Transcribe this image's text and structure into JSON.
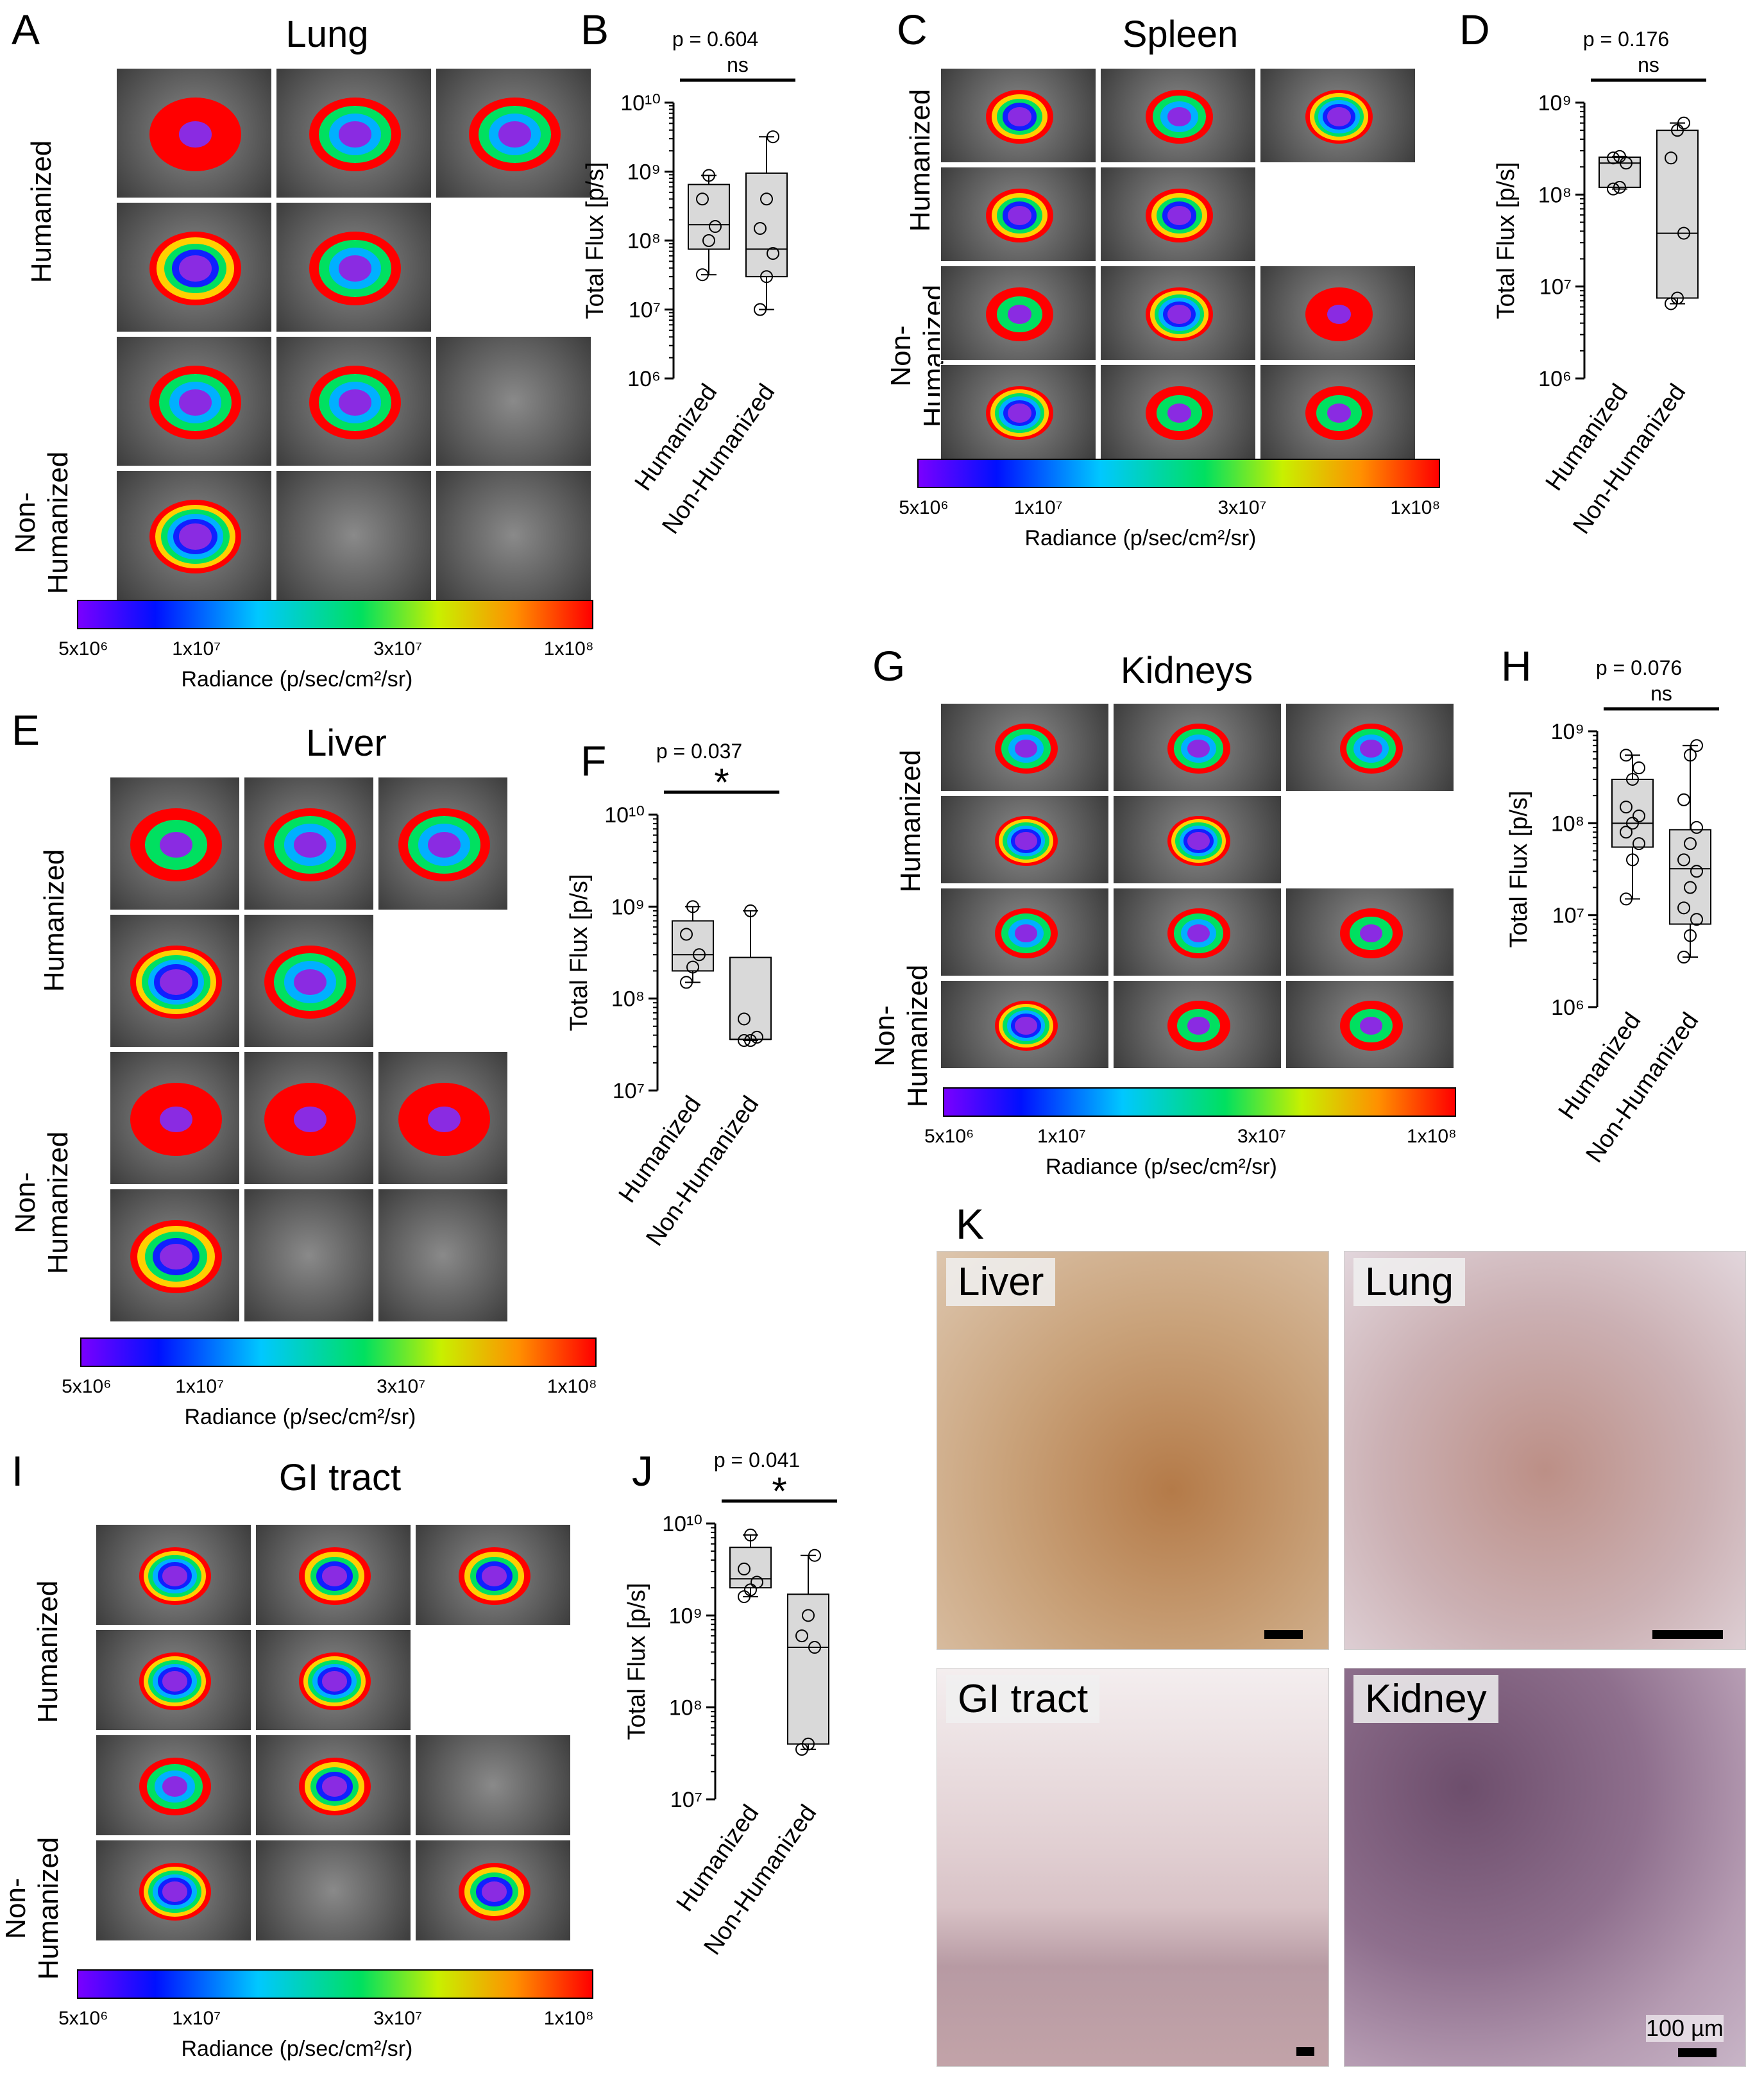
{
  "colors": {
    "box_fill": "#d9d9d9",
    "hist_liver": "#c9a27a",
    "hist_lung": "#c4a6a8",
    "hist_gi": "#d9c6c9",
    "hist_kidney": "#8e6f8d"
  },
  "panels": {
    "A": {
      "letter": "A",
      "organ": "Lung",
      "row1": "Humanized",
      "row2": "Non-\nHumanized"
    },
    "B": {
      "letter": "B",
      "p": "p = 0.604",
      "sig": "ns"
    },
    "C": {
      "letter": "C",
      "organ": "Spleen",
      "row1": "Humanized",
      "row2": "Non-\nHumanized"
    },
    "D": {
      "letter": "D",
      "p": "p = 0.176",
      "sig": "ns"
    },
    "E": {
      "letter": "E",
      "organ": "Liver",
      "row1": "Humanized",
      "row2": "Non-\nHumanized"
    },
    "F": {
      "letter": "F",
      "p": "p = 0.037",
      "sig": "*"
    },
    "G": {
      "letter": "G",
      "organ": "Kidneys",
      "row1": "Humanized",
      "row2": "Non-\nHumanized"
    },
    "H": {
      "letter": "H",
      "p": "p = 0.076",
      "sig": "ns"
    },
    "I": {
      "letter": "I",
      "organ": "GI tract",
      "row1": "Humanized",
      "row2": "Non-\nHumanized"
    },
    "J": {
      "letter": "J",
      "p": "p = 0.041",
      "sig": "*"
    },
    "K": {
      "letter": "K",
      "liver": "Liver",
      "lung": "Lung",
      "gi": "GI tract",
      "kidney": "Kidney",
      "scale": "100 µm"
    }
  },
  "colorbar": {
    "ticks": [
      "5x10⁶",
      "1x10⁷",
      "3x10⁷",
      "1x10⁸"
    ],
    "title": "Radiance (p/sec/cm²/sr)"
  },
  "chart_data": [
    {
      "panel": "B",
      "type": "box",
      "ylabel": "Total Flux [p/s]",
      "scale": "log",
      "ylim": [
        1000000.0,
        10000000000.0
      ],
      "categories": [
        "Humanized",
        "Non-Humanized"
      ],
      "series": [
        {
          "name": "Humanized",
          "points": [
            32000000.0,
            100000000.0,
            160000000.0,
            400000000.0,
            880000000.0
          ],
          "q1": 75000000.0,
          "median": 170000000.0,
          "q3": 650000000.0
        },
        {
          "name": "Non-Humanized",
          "points": [
            10000000.0,
            30000000.0,
            65000000.0,
            150000000.0,
            400000000.0,
            3200000000.0
          ],
          "q1": 30000000.0,
          "median": 75000000.0,
          "q3": 950000000.0
        }
      ]
    },
    {
      "panel": "D",
      "type": "box",
      "ylabel": "Total Flux [p/s]",
      "scale": "log",
      "ylim": [
        1000000.0,
        1000000000.0
      ],
      "categories": [
        "Humanized",
        "Non-Humanized"
      ],
      "series": [
        {
          "name": "Humanized",
          "points": [
            115000000.0,
            120000000.0,
            220000000.0,
            250000000.0,
            260000000.0
          ],
          "q1": 120000000.0,
          "median": 220000000.0,
          "q3": 255000000.0
        },
        {
          "name": "Non-Humanized",
          "points": [
            6500000.0,
            7500000.0,
            38000000.0,
            250000000.0,
            500000000.0,
            600000000.0
          ],
          "q1": 7500000.0,
          "median": 38000000.0,
          "q3": 500000000.0
        }
      ]
    },
    {
      "panel": "F",
      "type": "box",
      "ylabel": "Total Flux [p/s]",
      "scale": "log",
      "ylim": [
        10000000.0,
        10000000000.0
      ],
      "categories": [
        "Humanized",
        "Non-Humanized"
      ],
      "series": [
        {
          "name": "Humanized",
          "points": [
            150000000.0,
            220000000.0,
            300000000.0,
            500000000.0,
            1000000000.0
          ],
          "q1": 200000000.0,
          "median": 300000000.0,
          "q3": 700000000.0
        },
        {
          "name": "Non-Humanized",
          "points": [
            35000000.0,
            35000000.0,
            38000000.0,
            60000000.0,
            900000000.0
          ],
          "q1": 36000000.0,
          "median": 36000000.0,
          "q3": 280000000.0
        }
      ]
    },
    {
      "panel": "H",
      "type": "box",
      "ylabel": "Total Flux [p/s]",
      "scale": "log",
      "ylim": [
        1000000.0,
        1000000000.0
      ],
      "categories": [
        "Humanized",
        "Non-Humanized"
      ],
      "series": [
        {
          "name": "Humanized",
          "points": [
            15000000.0,
            40000000.0,
            60000000.0,
            80000000.0,
            100000000.0,
            120000000.0,
            150000000.0,
            300000000.0,
            400000000.0,
            550000000.0
          ],
          "q1": 55000000.0,
          "median": 100000000.0,
          "q3": 300000000.0
        },
        {
          "name": "Non-Humanized",
          "points": [
            3500000.0,
            6000000.0,
            9000000.0,
            12000000.0,
            20000000.0,
            30000000.0,
            40000000.0,
            60000000.0,
            90000000.0,
            180000000.0,
            550000000.0,
            700000000.0
          ],
          "q1": 8000000.0,
          "median": 32000000.0,
          "q3": 85000000.0
        }
      ]
    },
    {
      "panel": "J",
      "type": "box",
      "ylabel": "Total Flux [p/s]",
      "scale": "log",
      "ylim": [
        10000000.0,
        10000000000.0
      ],
      "categories": [
        "Humanized",
        "Non-Humanized"
      ],
      "series": [
        {
          "name": "Humanized",
          "points": [
            1600000000.0,
            1900000000.0,
            2300000000.0,
            3200000000.0,
            7500000000.0
          ],
          "q1": 2000000000.0,
          "median": 2500000000.0,
          "q3": 5500000000.0
        },
        {
          "name": "Non-Humanized",
          "points": [
            35000000.0,
            40000000.0,
            450000000.0,
            600000000.0,
            1000000000.0,
            4500000000.0
          ],
          "q1": 40000000.0,
          "median": 450000000.0,
          "q3": 1700000000.0
        }
      ]
    }
  ]
}
